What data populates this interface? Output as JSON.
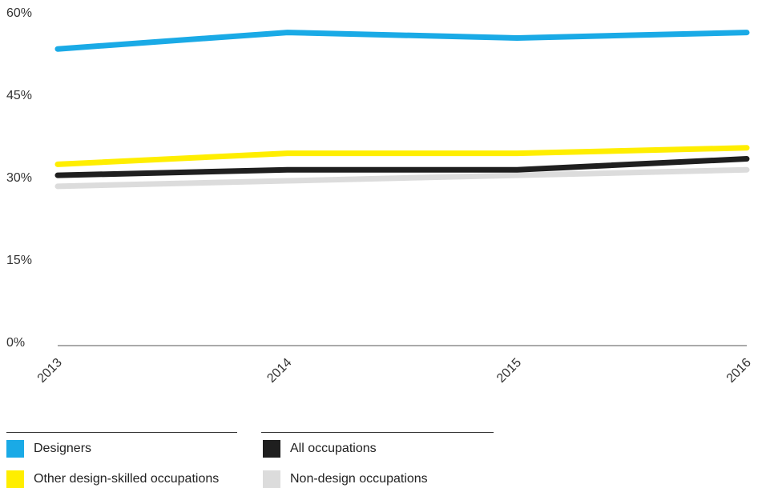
{
  "chart_data": {
    "type": "line",
    "title": "",
    "xlabel": "",
    "ylabel": "",
    "x": [
      "2013",
      "2014",
      "2015",
      "2016"
    ],
    "ylim": [
      0,
      60
    ],
    "yticks": [
      "0%",
      "15%",
      "30%",
      "45%",
      "60%"
    ],
    "ytick_values": [
      0,
      15,
      30,
      45,
      60
    ],
    "grid": false,
    "legend_position": "bottom",
    "series": [
      {
        "name": "Non-design occupations",
        "color": "#dcdcdc",
        "values": [
          29,
          30,
          31,
          32
        ]
      },
      {
        "name": "All occupations",
        "color": "#1f1f1f",
        "values": [
          31,
          32,
          32,
          34
        ]
      },
      {
        "name": "Other design-skilled occupations",
        "color": "#ffee00",
        "values": [
          33,
          35,
          35,
          36
        ]
      },
      {
        "name": "Designers",
        "color": "#1aaae6",
        "values": [
          54,
          57,
          56,
          57
        ]
      }
    ]
  },
  "legend": [
    {
      "label": "Designers",
      "color": "#1aaae6"
    },
    {
      "label": "All occupations",
      "color": "#1f1f1f"
    },
    {
      "label": "Other design-skilled occupations",
      "color": "#ffee00"
    },
    {
      "label": "Non-design occupations",
      "color": "#dcdcdc"
    }
  ]
}
